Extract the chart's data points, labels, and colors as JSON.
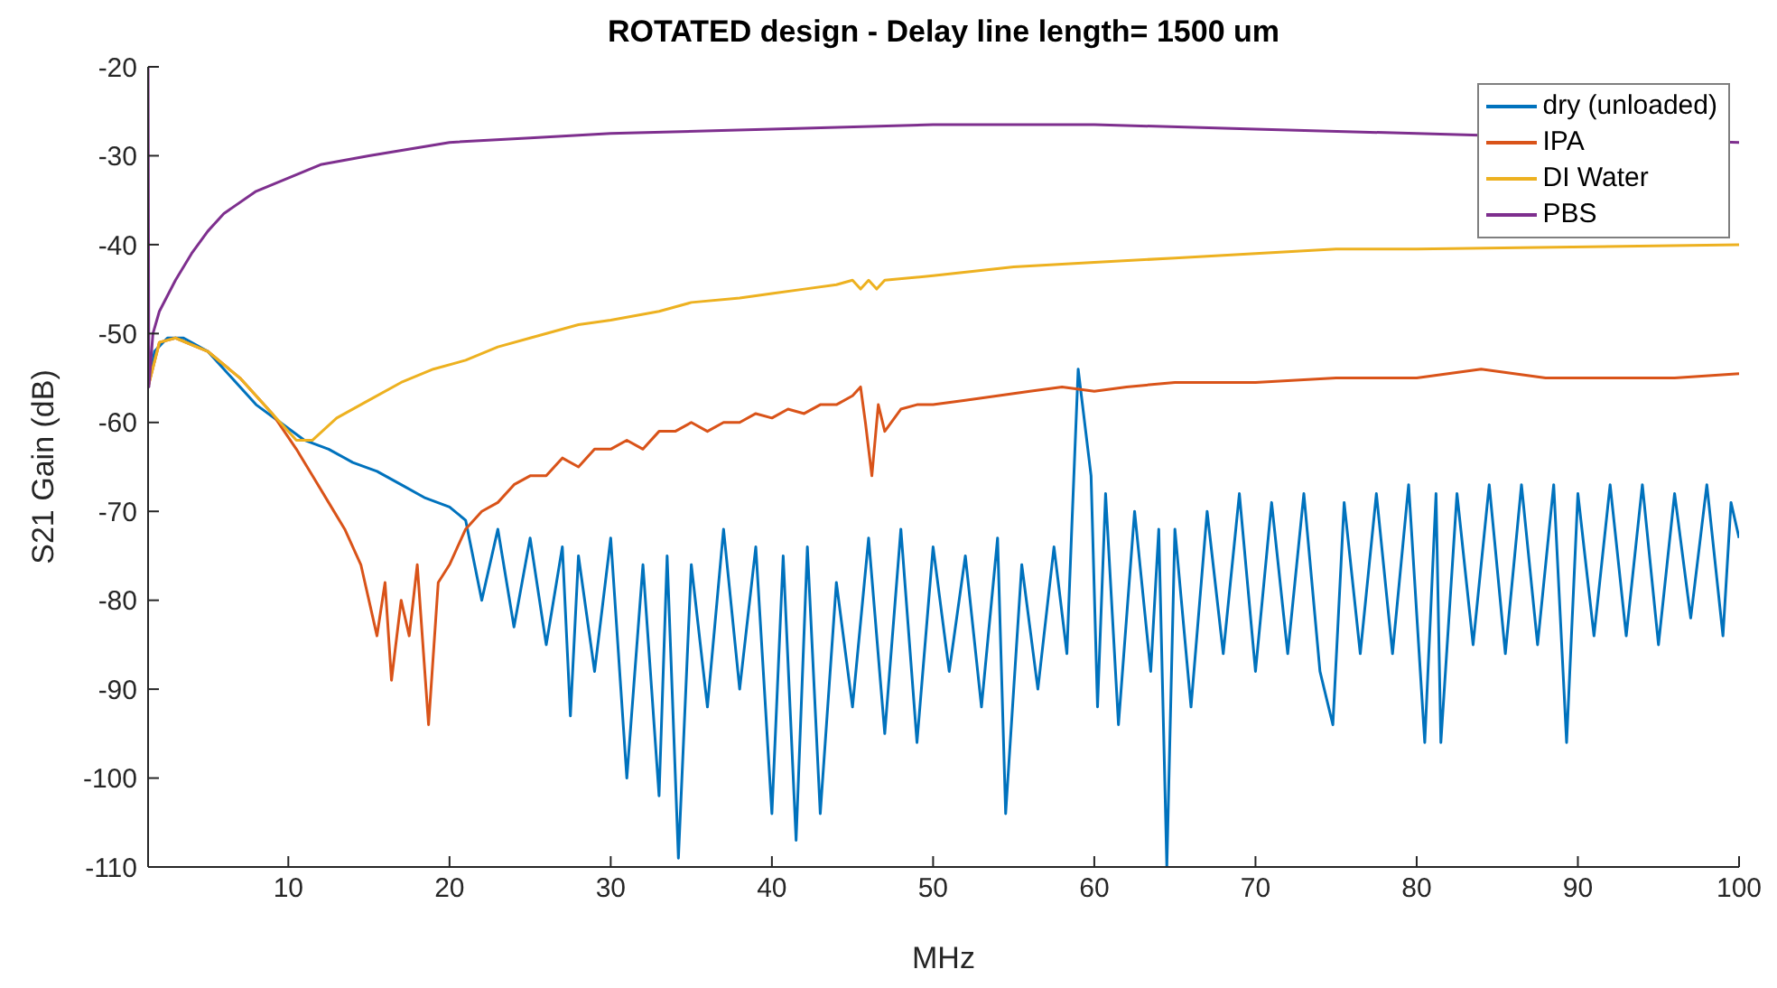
{
  "chart_data": {
    "type": "line",
    "title": "ROTATED design - Delay line length= 1500 um",
    "xlabel": "MHz",
    "ylabel": "S21 Gain (dB)",
    "xlim": [
      1.3,
      100
    ],
    "xticks": [
      10,
      20,
      30,
      40,
      50,
      60,
      70,
      80,
      90,
      100
    ],
    "ylim": [
      -110,
      -20
    ],
    "yticks": [
      -110,
      -100,
      -90,
      -80,
      -70,
      -60,
      -50,
      -40,
      -30,
      -20
    ],
    "grid": false,
    "legend": "top right",
    "marker": "none",
    "line_style": "solid",
    "series": [
      {
        "name": "dry (unloaded)",
        "color": "#0072bd",
        "x": [
          1.3,
          1.7,
          2.5,
          3.5,
          5,
          6.5,
          8,
          9.5,
          11,
          12.5,
          14,
          15.5,
          17,
          18.5,
          20,
          21,
          22,
          23,
          24,
          25,
          26,
          27,
          27.5,
          28,
          29,
          30,
          31,
          32,
          33,
          33.5,
          34.2,
          35,
          36,
          37,
          38,
          39,
          40,
          40.7,
          41.5,
          42.2,
          43,
          44,
          45,
          46,
          47,
          48,
          49,
          50,
          51,
          52,
          53,
          54,
          54.5,
          55.5,
          56.5,
          57.5,
          58.3,
          58.6,
          59,
          59.4,
          59.8,
          60.2,
          60.7,
          61.5,
          62.5,
          63.5,
          64,
          64.5,
          65,
          66,
          67,
          68,
          69,
          70,
          71,
          72,
          73,
          74,
          74.8,
          75.5,
          76.5,
          77.5,
          78.5,
          79.5,
          80.5,
          81.2,
          81.5,
          82.5,
          83.5,
          84.5,
          85.5,
          86.5,
          87.5,
          88.5,
          89.3,
          90,
          91,
          92,
          93,
          94,
          95,
          96,
          97,
          98,
          99,
          99.5,
          100
        ],
        "values": [
          -56,
          -52,
          -50.5,
          -50.5,
          -52,
          -55,
          -58,
          -60,
          -62,
          -63,
          -64.5,
          -65.5,
          -67,
          -68.5,
          -69.5,
          -71,
          -80,
          -72,
          -83,
          -73,
          -85,
          -74,
          -93,
          -75,
          -88,
          -73,
          -100,
          -76,
          -102,
          -75,
          -109,
          -76,
          -92,
          -72,
          -90,
          -74,
          -104,
          -75,
          -107,
          -74,
          -104,
          -78,
          -92,
          -73,
          -95,
          -72,
          -96,
          -74,
          -88,
          -75,
          -92,
          -73,
          -104,
          -76,
          -90,
          -74,
          -86,
          -72,
          -54,
          -60,
          -66,
          -92,
          -68,
          -94,
          -70,
          -88,
          -72,
          -110,
          -72,
          -92,
          -70,
          -86,
          -68,
          -88,
          -69,
          -86,
          -68,
          -88,
          -94,
          -69,
          -86,
          -68,
          -86,
          -67,
          -96,
          -68,
          -96,
          -68,
          -85,
          -67,
          -86,
          -67,
          -85,
          -67,
          -96,
          -68,
          -84,
          -67,
          -84,
          -67,
          -85,
          -68,
          -82,
          -67,
          -84,
          -69,
          -73
        ]
      },
      {
        "name": "IPA",
        "color": "#d95319",
        "x": [
          1.3,
          2,
          3,
          5,
          7,
          9,
          10.5,
          11.5,
          12.5,
          13.5,
          14.5,
          15,
          15.5,
          16,
          16.4,
          17,
          17.5,
          18,
          18.7,
          19.3,
          20,
          21,
          22,
          23,
          24,
          25,
          26,
          27,
          28,
          29,
          30,
          31,
          32,
          33,
          34,
          35,
          36,
          37,
          38,
          39,
          40,
          41,
          42,
          43,
          44,
          45,
          45.5,
          45.8,
          46.2,
          46.6,
          47,
          48,
          49,
          50,
          52,
          54,
          56,
          58,
          60,
          62,
          65,
          70,
          75,
          80,
          84,
          88,
          92,
          96,
          100
        ],
        "values": [
          -56,
          -51,
          -50.5,
          -52,
          -55,
          -59,
          -63,
          -66,
          -69,
          -72,
          -76,
          -80,
          -84,
          -78,
          -89,
          -80,
          -84,
          -76,
          -94,
          -78,
          -76,
          -72,
          -70,
          -69,
          -67,
          -66,
          -66,
          -64,
          -65,
          -63,
          -63,
          -62,
          -63,
          -61,
          -61,
          -60,
          -61,
          -60,
          -60,
          -59,
          -59.5,
          -58.5,
          -59,
          -58,
          -58,
          -57,
          -56,
          -60,
          -66,
          -58,
          -61,
          -58.5,
          -58,
          -58,
          -57.5,
          -57,
          -56.5,
          -56,
          -56.5,
          -56,
          -55.5,
          -55.5,
          -55,
          -55,
          -54,
          -55,
          -55,
          -55,
          -54.5
        ]
      },
      {
        "name": "DI Water",
        "color": "#edb120",
        "x": [
          1.3,
          2,
          3,
          5,
          7,
          9,
          10.5,
          11.5,
          13,
          15,
          17,
          19,
          21,
          23,
          25,
          28,
          30,
          33,
          35,
          38,
          40,
          42,
          44,
          45,
          45.5,
          46,
          46.5,
          47,
          50,
          55,
          60,
          65,
          70,
          75,
          80,
          100
        ],
        "values": [
          -56,
          -51,
          -50.5,
          -52,
          -55,
          -59,
          -62,
          -62,
          -59.5,
          -57.5,
          -55.5,
          -54,
          -53,
          -51.5,
          -50.5,
          -49,
          -48.5,
          -47.5,
          -46.5,
          -46,
          -45.5,
          -45,
          -44.5,
          -44,
          -45,
          -44,
          -45,
          -44,
          -43.5,
          -42.5,
          -42,
          -41.5,
          -41,
          -40.5,
          -40.5,
          -40
        ]
      },
      {
        "name": "PBS",
        "color": "#7e2f8e",
        "x": [
          1.3,
          1.35,
          1.6,
          2,
          3,
          4,
          5,
          6,
          8,
          10,
          12,
          15,
          20,
          25,
          30,
          40,
          50,
          60,
          70,
          80,
          100
        ],
        "values": [
          -20,
          -56,
          -50,
          -47.5,
          -44,
          -41,
          -38.5,
          -36.5,
          -34,
          -32.5,
          -31,
          -30,
          -28.5,
          -28,
          -27.5,
          -27,
          -26.5,
          -26.5,
          -27,
          -27.5,
          -28.5
        ]
      }
    ]
  }
}
